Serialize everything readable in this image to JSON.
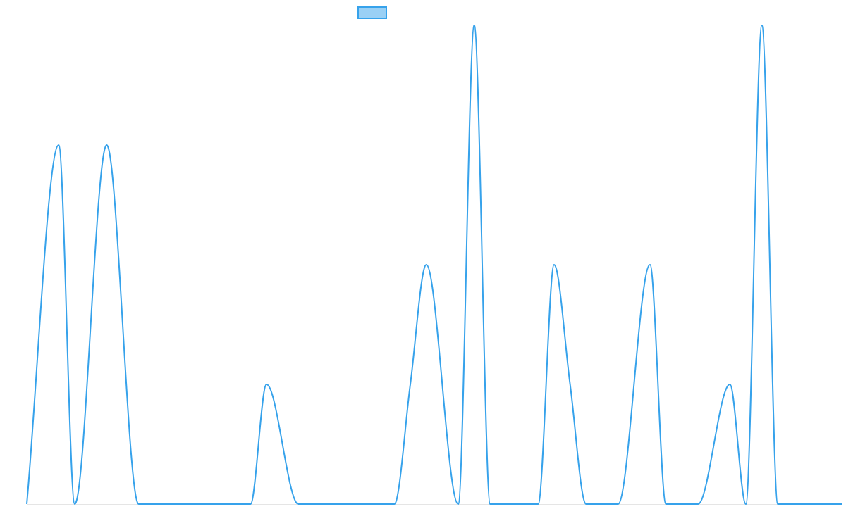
{
  "chart_data": {
    "type": "line",
    "title": "",
    "xlabel": "",
    "ylabel": "",
    "grid": false,
    "legend_position": "top-center",
    "legend_label": "",
    "colors": {
      "line": "#36a2eb",
      "legend_fill": "#9ad0f5",
      "axis": "#e5e5e5"
    },
    "xlim": [
      0,
      51
    ],
    "ylim": [
      0,
      4
    ],
    "series": [
      {
        "x": [
          0,
          2,
          3,
          5,
          7,
          10,
          14,
          15,
          17,
          19,
          23,
          24,
          25,
          27,
          28,
          29,
          31,
          32,
          33,
          34,
          35,
          36,
          37,
          39,
          40,
          41,
          42,
          44,
          45,
          46,
          47,
          51
        ],
        "y": [
          0,
          3,
          0,
          3,
          0,
          0,
          0,
          1,
          0,
          0,
          0,
          1,
          2,
          0,
          4,
          0,
          0,
          0,
          2,
          1,
          0,
          0,
          0,
          2,
          0,
          0,
          0,
          1,
          0,
          4,
          0,
          0
        ]
      }
    ]
  }
}
